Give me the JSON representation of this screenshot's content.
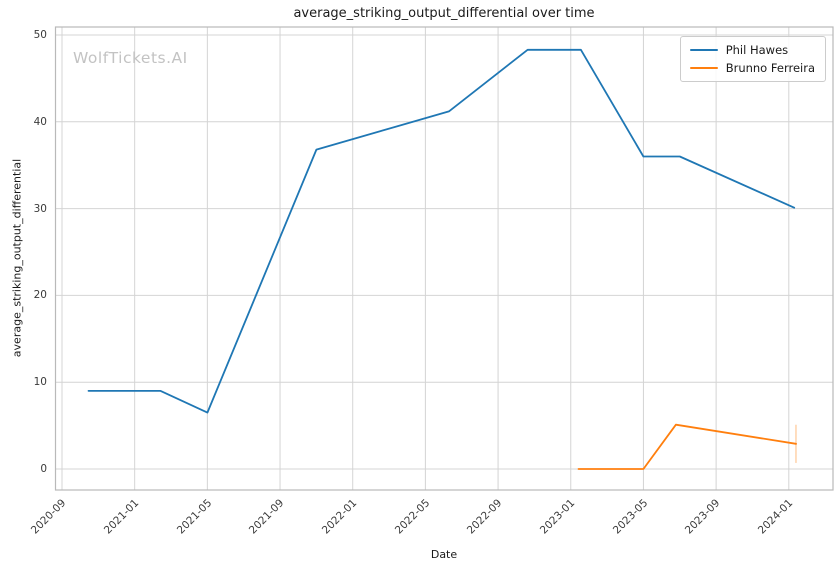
{
  "title": "average_striking_output_differential over time",
  "watermark": "WolfTickets.AI",
  "axes": {
    "x_label": "Date",
    "y_label": "average_striking_output_differential",
    "x_ticks": [
      "2020-09",
      "2021-01",
      "2021-05",
      "2021-09",
      "2022-01",
      "2022-05",
      "2022-09",
      "2023-01",
      "2023-05",
      "2023-09",
      "2024-01"
    ],
    "y_ticks": [
      0,
      10,
      20,
      30,
      40,
      50
    ]
  },
  "legend": {
    "position": "upper right",
    "items": [
      {
        "label": "Phil Hawes",
        "color": "#1f77b4"
      },
      {
        "label": "Brunno Ferreira",
        "color": "#ff7f0e"
      }
    ]
  },
  "colors": {
    "grid": "#d4d4d4",
    "spine": "#b9b9b9",
    "background": "#ffffff",
    "text": "#1a1a1a"
  },
  "chart_data": {
    "type": "line",
    "title": "average_striking_output_differential over time",
    "xlabel": "Date",
    "ylabel": "average_striking_output_differential",
    "x_axis_range": [
      "2020-08-20",
      "2024-03-10"
    ],
    "ylim": [
      -2.5,
      51
    ],
    "grid": true,
    "legend_position": "upper right",
    "series": [
      {
        "name": "Phil Hawes",
        "color": "#1f77b4",
        "points": [
          [
            "2020-10-15",
            9.0
          ],
          [
            "2021-02-14",
            9.0
          ],
          [
            "2021-05-01",
            6.5
          ],
          [
            "2021-11-01",
            36.8
          ],
          [
            "2022-06-10",
            41.2
          ],
          [
            "2022-10-20",
            48.3
          ],
          [
            "2023-01-18",
            48.3
          ],
          [
            "2023-05-01",
            36.0
          ],
          [
            "2023-07-01",
            36.0
          ],
          [
            "2024-01-10",
            30.1
          ]
        ]
      },
      {
        "name": "Brunno Ferreira",
        "color": "#ff7f0e",
        "points": [
          [
            "2023-01-14",
            0.0
          ],
          [
            "2023-05-01",
            0.0
          ],
          [
            "2023-06-25",
            5.1
          ],
          [
            "2024-01-13",
            2.9
          ]
        ],
        "error_bars": [
          {
            "x": "2024-01-13",
            "y": 2.9,
            "y_min": 0.7,
            "y_max": 5.1
          }
        ]
      }
    ]
  }
}
